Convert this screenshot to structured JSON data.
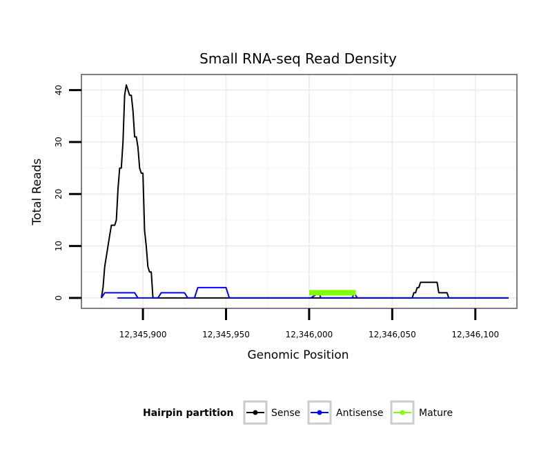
{
  "chart_data": {
    "type": "line",
    "title": "Small RNA-seq Read Density",
    "xlabel": "Genomic Position",
    "ylabel": "Total Reads",
    "xlim": [
      12345863,
      12346125
    ],
    "ylim": [
      -2,
      43
    ],
    "x_ticks": [
      12345900,
      12345950,
      12346000,
      12346050,
      12346100
    ],
    "x_tick_labels": [
      "12,345,900",
      "12,345,950",
      "12,346,000",
      "12,346,050",
      "12,346,100"
    ],
    "y_ticks": [
      0,
      10,
      20,
      30,
      40
    ],
    "y_tick_labels": [
      "0",
      "10",
      "20",
      "30",
      "40"
    ],
    "grid": true,
    "legend": {
      "title": "Hairpin partition",
      "position": "bottom",
      "entries": [
        "Sense",
        "Antisense",
        "Mature"
      ]
    },
    "series": [
      {
        "name": "Sense",
        "color": "#000000",
        "x": [
          12345875,
          12345876,
          12345877,
          12345878,
          12345879,
          12345880,
          12345881,
          12345882,
          12345883,
          12345884,
          12345885,
          12345886,
          12345887,
          12345888,
          12345889,
          12345890,
          12345891,
          12345892,
          12345893,
          12345894,
          12345895,
          12345896,
          12345897,
          12345898,
          12345899,
          12345900,
          12345901,
          12345902,
          12345903,
          12345904,
          12345905,
          12345906,
          12345907,
          12345908,
          12345909,
          12345910,
          12345911,
          12345912,
          12345913,
          12345914,
          12346062,
          12346063,
          12346064,
          12346065,
          12346066,
          12346067,
          12346068,
          12346069,
          12346070,
          12346071,
          12346072,
          12346073,
          12346074,
          12346075,
          12346076,
          12346077,
          12346078,
          12346079,
          12346080,
          12346081,
          12346082,
          12346083,
          12346084,
          12346085,
          12346086,
          12346087,
          12346088,
          12346089,
          12346090,
          12346120
        ],
        "values": [
          0,
          2,
          6,
          8,
          10,
          12,
          14,
          14,
          14,
          15,
          21,
          25,
          25,
          30,
          39,
          41,
          40,
          39,
          39,
          36,
          31,
          31,
          29,
          25,
          24,
          24,
          13,
          10,
          6,
          5,
          5,
          0,
          0,
          0,
          0,
          0,
          0,
          0,
          0,
          0,
          0,
          1,
          1,
          2,
          2,
          3,
          3,
          3,
          3,
          3,
          3,
          3,
          3,
          3,
          3,
          3,
          1,
          1,
          1,
          1,
          1,
          1,
          0,
          0,
          0,
          0,
          0,
          0,
          0,
          0
        ]
      },
      {
        "name": "Antisense",
        "color": "#0000ff",
        "x": [
          12345875,
          12345877,
          12345895,
          12345897,
          12345885,
          12345888,
          12345909,
          12345911,
          12345925,
          12345927,
          12345931,
          12345933,
          12345950,
          12345952,
          12346000,
          12346001,
          12346006,
          12346007,
          12346026,
          12346027,
          12346029,
          12346030,
          12346060,
          12346061,
          12346090,
          12346120
        ],
        "values": [
          0,
          1,
          1,
          0,
          0,
          0,
          0,
          1,
          1,
          0,
          0,
          2,
          2,
          0,
          0,
          0,
          1,
          0,
          0,
          1,
          0,
          0,
          0,
          0,
          0,
          0
        ]
      },
      {
        "name": "Mature",
        "color": "#7fff00",
        "x": [
          12346000,
          12346028
        ],
        "values": [
          1,
          1
        ]
      }
    ]
  }
}
